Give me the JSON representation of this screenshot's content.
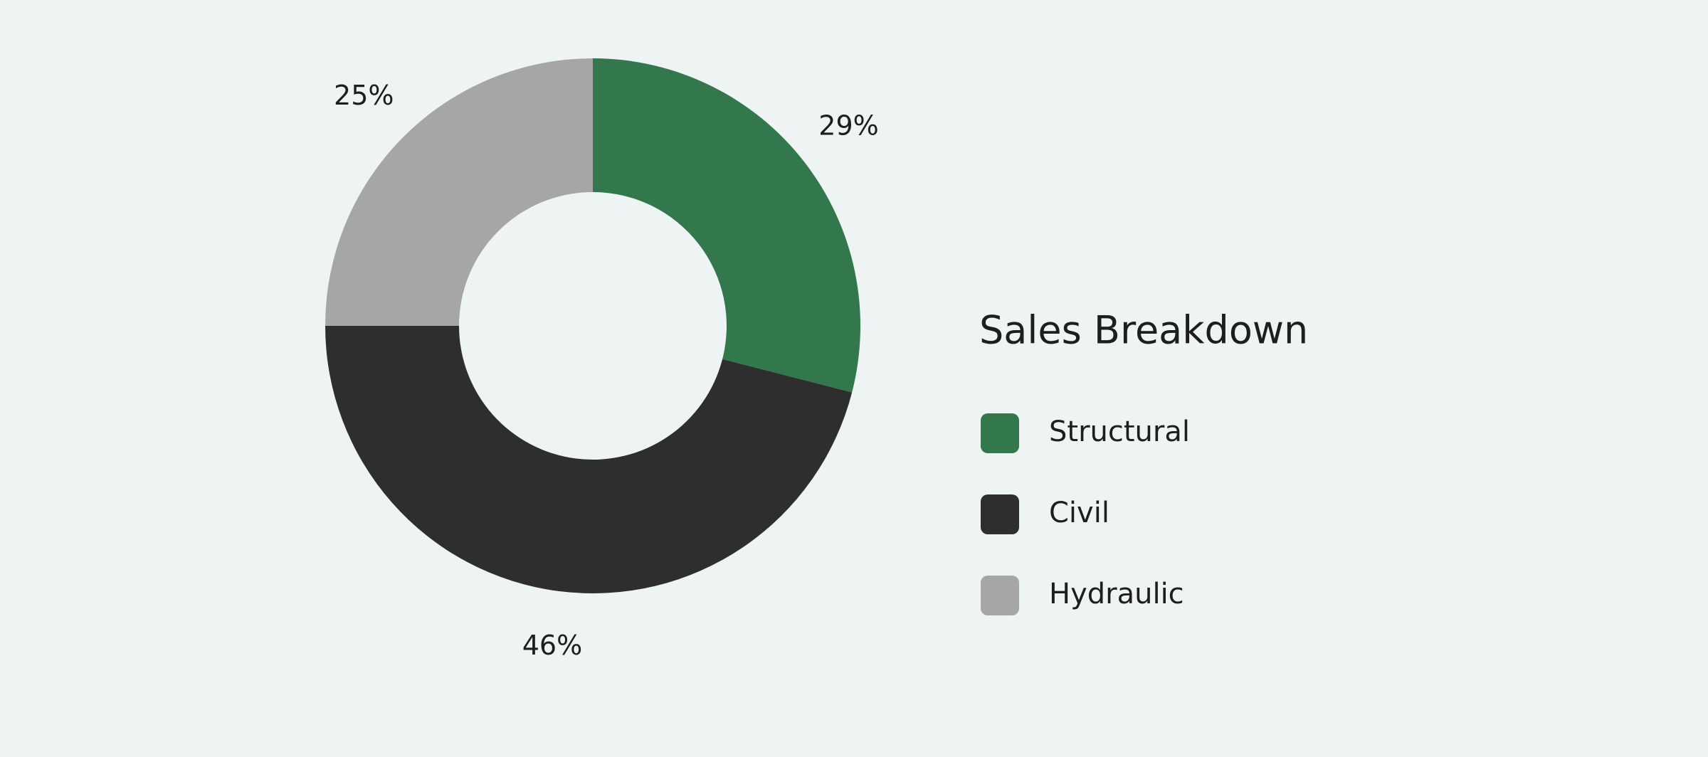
{
  "chart_data": {
    "type": "donut",
    "title": "Sales Breakdown",
    "categories": [
      "Structural",
      "Civil",
      "Hydraulic"
    ],
    "values": [
      29,
      46,
      25
    ],
    "value_labels": [
      "29%",
      "46%",
      "25%"
    ],
    "colors": [
      "#33784c",
      "#2e2e2e",
      "#a6a6a6"
    ]
  }
}
